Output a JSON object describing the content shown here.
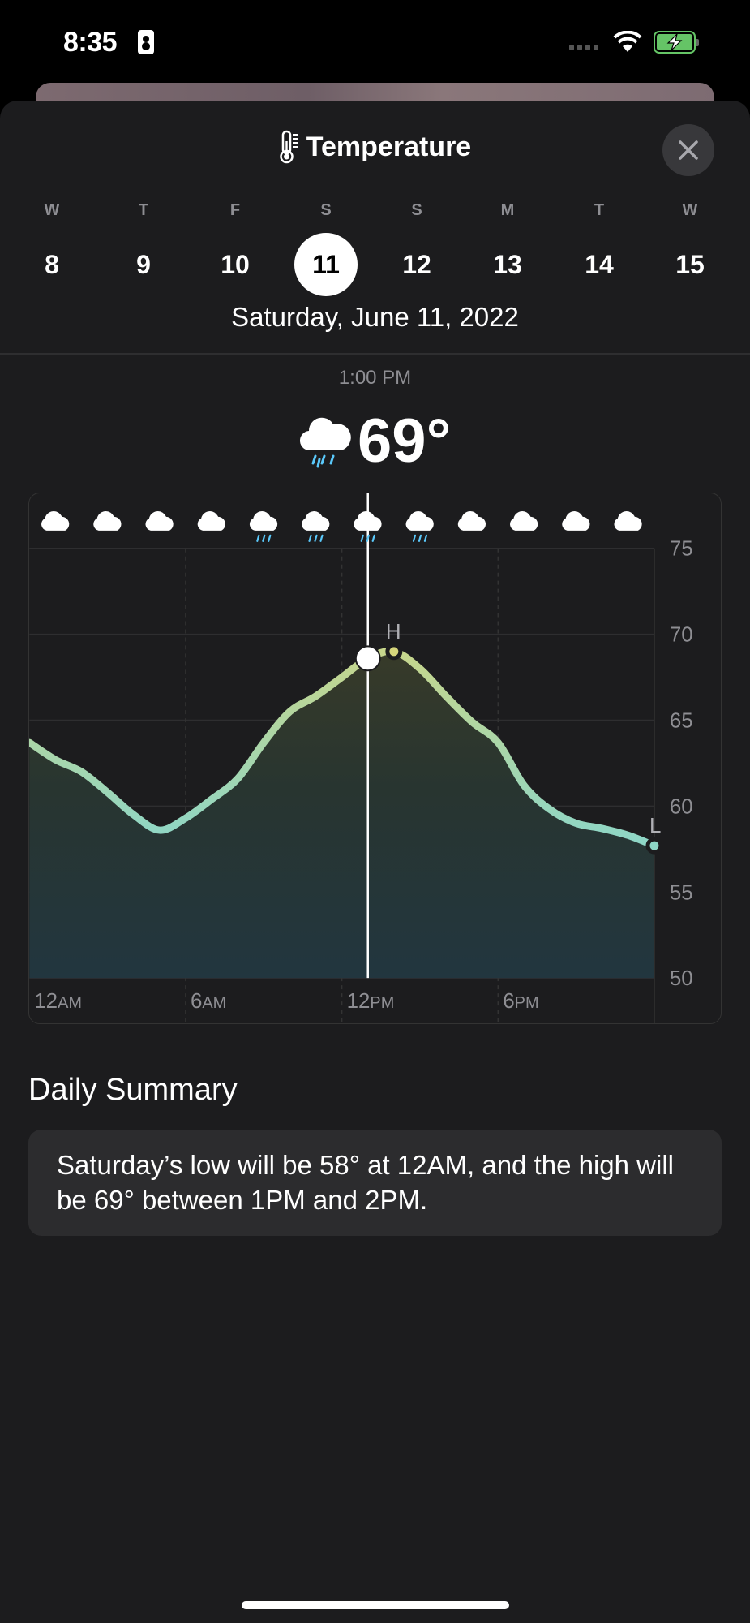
{
  "status_bar": {
    "time": "8:35",
    "icons": [
      "contact-card-icon",
      "cellular-signal-icon",
      "wifi-icon",
      "battery-charging-icon"
    ],
    "battery_color": "#65c466"
  },
  "header": {
    "title": "Temperature",
    "icon": "thermometer-icon",
    "close_icon": "close-icon"
  },
  "days": [
    {
      "letter": "W",
      "num": "8"
    },
    {
      "letter": "T",
      "num": "9"
    },
    {
      "letter": "F",
      "num": "10"
    },
    {
      "letter": "S",
      "num": "11",
      "selected": true
    },
    {
      "letter": "S",
      "num": "12"
    },
    {
      "letter": "M",
      "num": "13"
    },
    {
      "letter": "T",
      "num": "14"
    },
    {
      "letter": "W",
      "num": "15"
    }
  ],
  "selected_date": "Saturday, June 11, 2022",
  "current": {
    "time": "1:00 PM",
    "temp": "69°",
    "icon": "cloud-rain-icon"
  },
  "chart_data": {
    "type": "line",
    "x_unit": "hour",
    "x": [
      0,
      1,
      2,
      3,
      4,
      5,
      6,
      7,
      8,
      9,
      10,
      11,
      12,
      13,
      14,
      15,
      16,
      17,
      18,
      19,
      20,
      21,
      22,
      23,
      24
    ],
    "values": [
      63.7,
      62.7,
      62.0,
      60.8,
      59.5,
      58.6,
      59.3,
      60.4,
      61.6,
      63.7,
      65.5,
      66.4,
      67.5,
      68.6,
      69.0,
      68.0,
      66.4,
      64.9,
      63.7,
      61.2,
      59.8,
      59.0,
      58.7,
      58.3,
      57.7
    ],
    "ylim": [
      50,
      75
    ],
    "y_ticks": [
      "75",
      "70",
      "65",
      "60",
      "55",
      "50"
    ],
    "x_ticks": [
      {
        "num": "12",
        "suffix": "AM"
      },
      {
        "num": "6",
        "suffix": "AM"
      },
      {
        "num": "12",
        "suffix": "PM"
      },
      {
        "num": "6",
        "suffix": "PM"
      }
    ],
    "grid": true,
    "selected_hour": 13,
    "high": {
      "label": "H",
      "hour": 14,
      "value": 69
    },
    "low": {
      "label": "L",
      "hour": 24,
      "value": 58
    },
    "condition_icons": [
      "cloud",
      "cloud",
      "cloud",
      "cloud",
      "cloud-rain",
      "cloud-rain",
      "cloud-rain",
      "cloud-rain",
      "cloud",
      "cloud",
      "cloud",
      "cloud"
    ],
    "colors": {
      "line_warm": "#d6d67c",
      "line_cool": "#8ed6c6",
      "rain": "#5ac8fa"
    }
  },
  "daily_summary": {
    "title": "Daily Summary",
    "text": "Saturday’s low will be 58° at 12AM, and the high will be 69° between 1PM and 2PM."
  }
}
